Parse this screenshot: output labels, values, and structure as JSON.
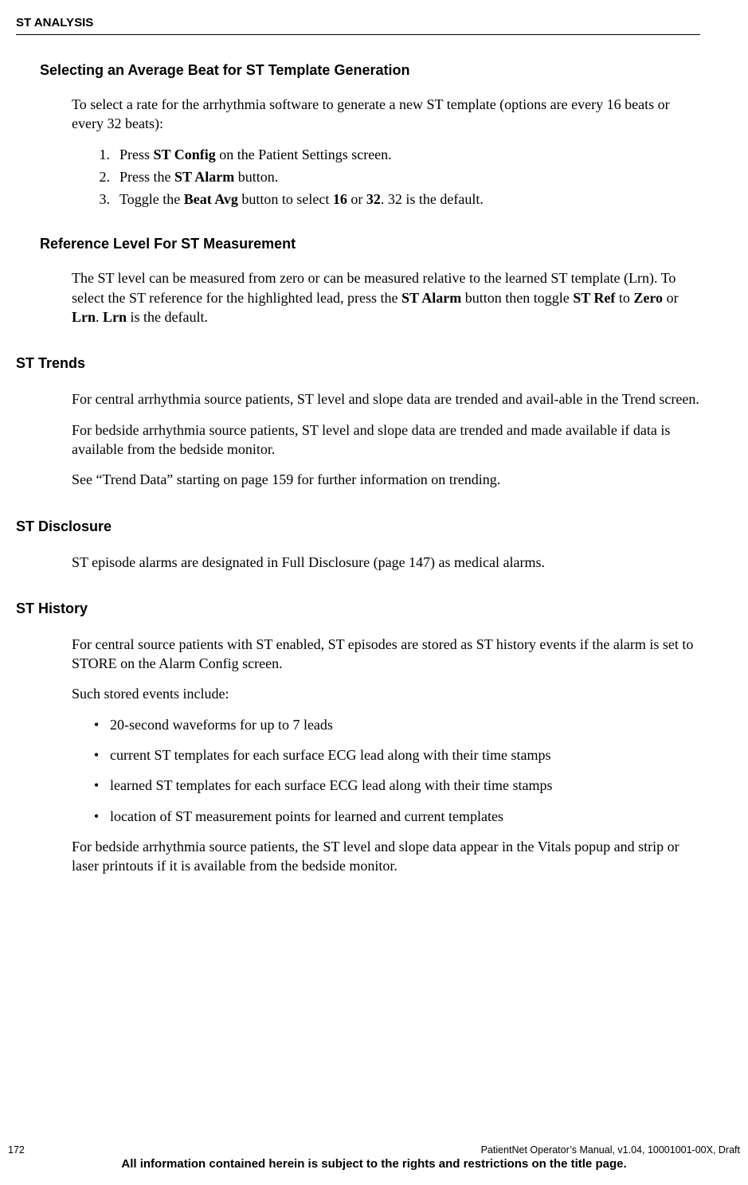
{
  "header": "ST ANALYSIS",
  "s1": {
    "title": "Selecting an Average Beat for ST Template Generation",
    "intro": "To select a rate for the arrhythmia software to generate a new ST template (options are every 16 beats or every 32 beats):",
    "step1_a": "Press ",
    "step1_b": "ST Config",
    "step1_c": " on the Patient Settings screen.",
    "step2_a": "Press the ",
    "step2_b": "ST Alarm",
    "step2_c": " button.",
    "step3_a": "Toggle the ",
    "step3_b": "Beat Avg",
    "step3_c": " button to select ",
    "step3_d": "16",
    "step3_e": " or ",
    "step3_f": "32",
    "step3_g": ". 32 is the default."
  },
  "s2": {
    "title": "Reference Level For ST Measurement",
    "p_a": "The ST level can be measured from zero or can be measured relative to the learned ST template (Lrn). To select the ST reference for the highlighted lead, press the ",
    "p_b": "ST Alarm",
    "p_c": " button then toggle ",
    "p_d": "ST Ref",
    "p_e": " to ",
    "p_f": "Zero",
    "p_g": " or ",
    "p_h": "Lrn",
    "p_i": ". ",
    "p_j": "Lrn",
    "p_k": " is the default."
  },
  "s3": {
    "title": "ST Trends",
    "p1": "For central arrhythmia source patients, ST level and slope data are trended and avail-able in the Trend screen.",
    "p2": "For bedside arrhythmia source patients, ST level and slope data are trended and made available if data is available from the bedside monitor.",
    "p3": "See “Trend Data” starting on page 159 for further information on trending."
  },
  "s4": {
    "title": "ST Disclosure",
    "p1": "ST episode alarms are designated in Full Disclosure (page 147) as medical alarms."
  },
  "s5": {
    "title": "ST History",
    "p1": "For central source patients with ST enabled, ST episodes are stored as ST history events if the alarm is set to STORE on the Alarm Config screen.",
    "p2": "Such stored events include:",
    "b1": "20-second waveforms for up to 7 leads",
    "b2": "current ST templates for each surface ECG lead along with their time stamps",
    "b3": "learned ST templates for each surface ECG lead along with their time stamps",
    "b4": "location of ST measurement points for learned and current templates",
    "p3": "For bedside arrhythmia source patients, the ST level and slope data appear in the Vitals popup and strip or laser printouts if it is available from the bedside monitor."
  },
  "footer": {
    "page": "172",
    "right": "PatientNet Operator’s Manual, v1.04, 10001001-00X, Draft",
    "notice": "All information contained herein is subject to the rights and restrictions on the title page."
  }
}
